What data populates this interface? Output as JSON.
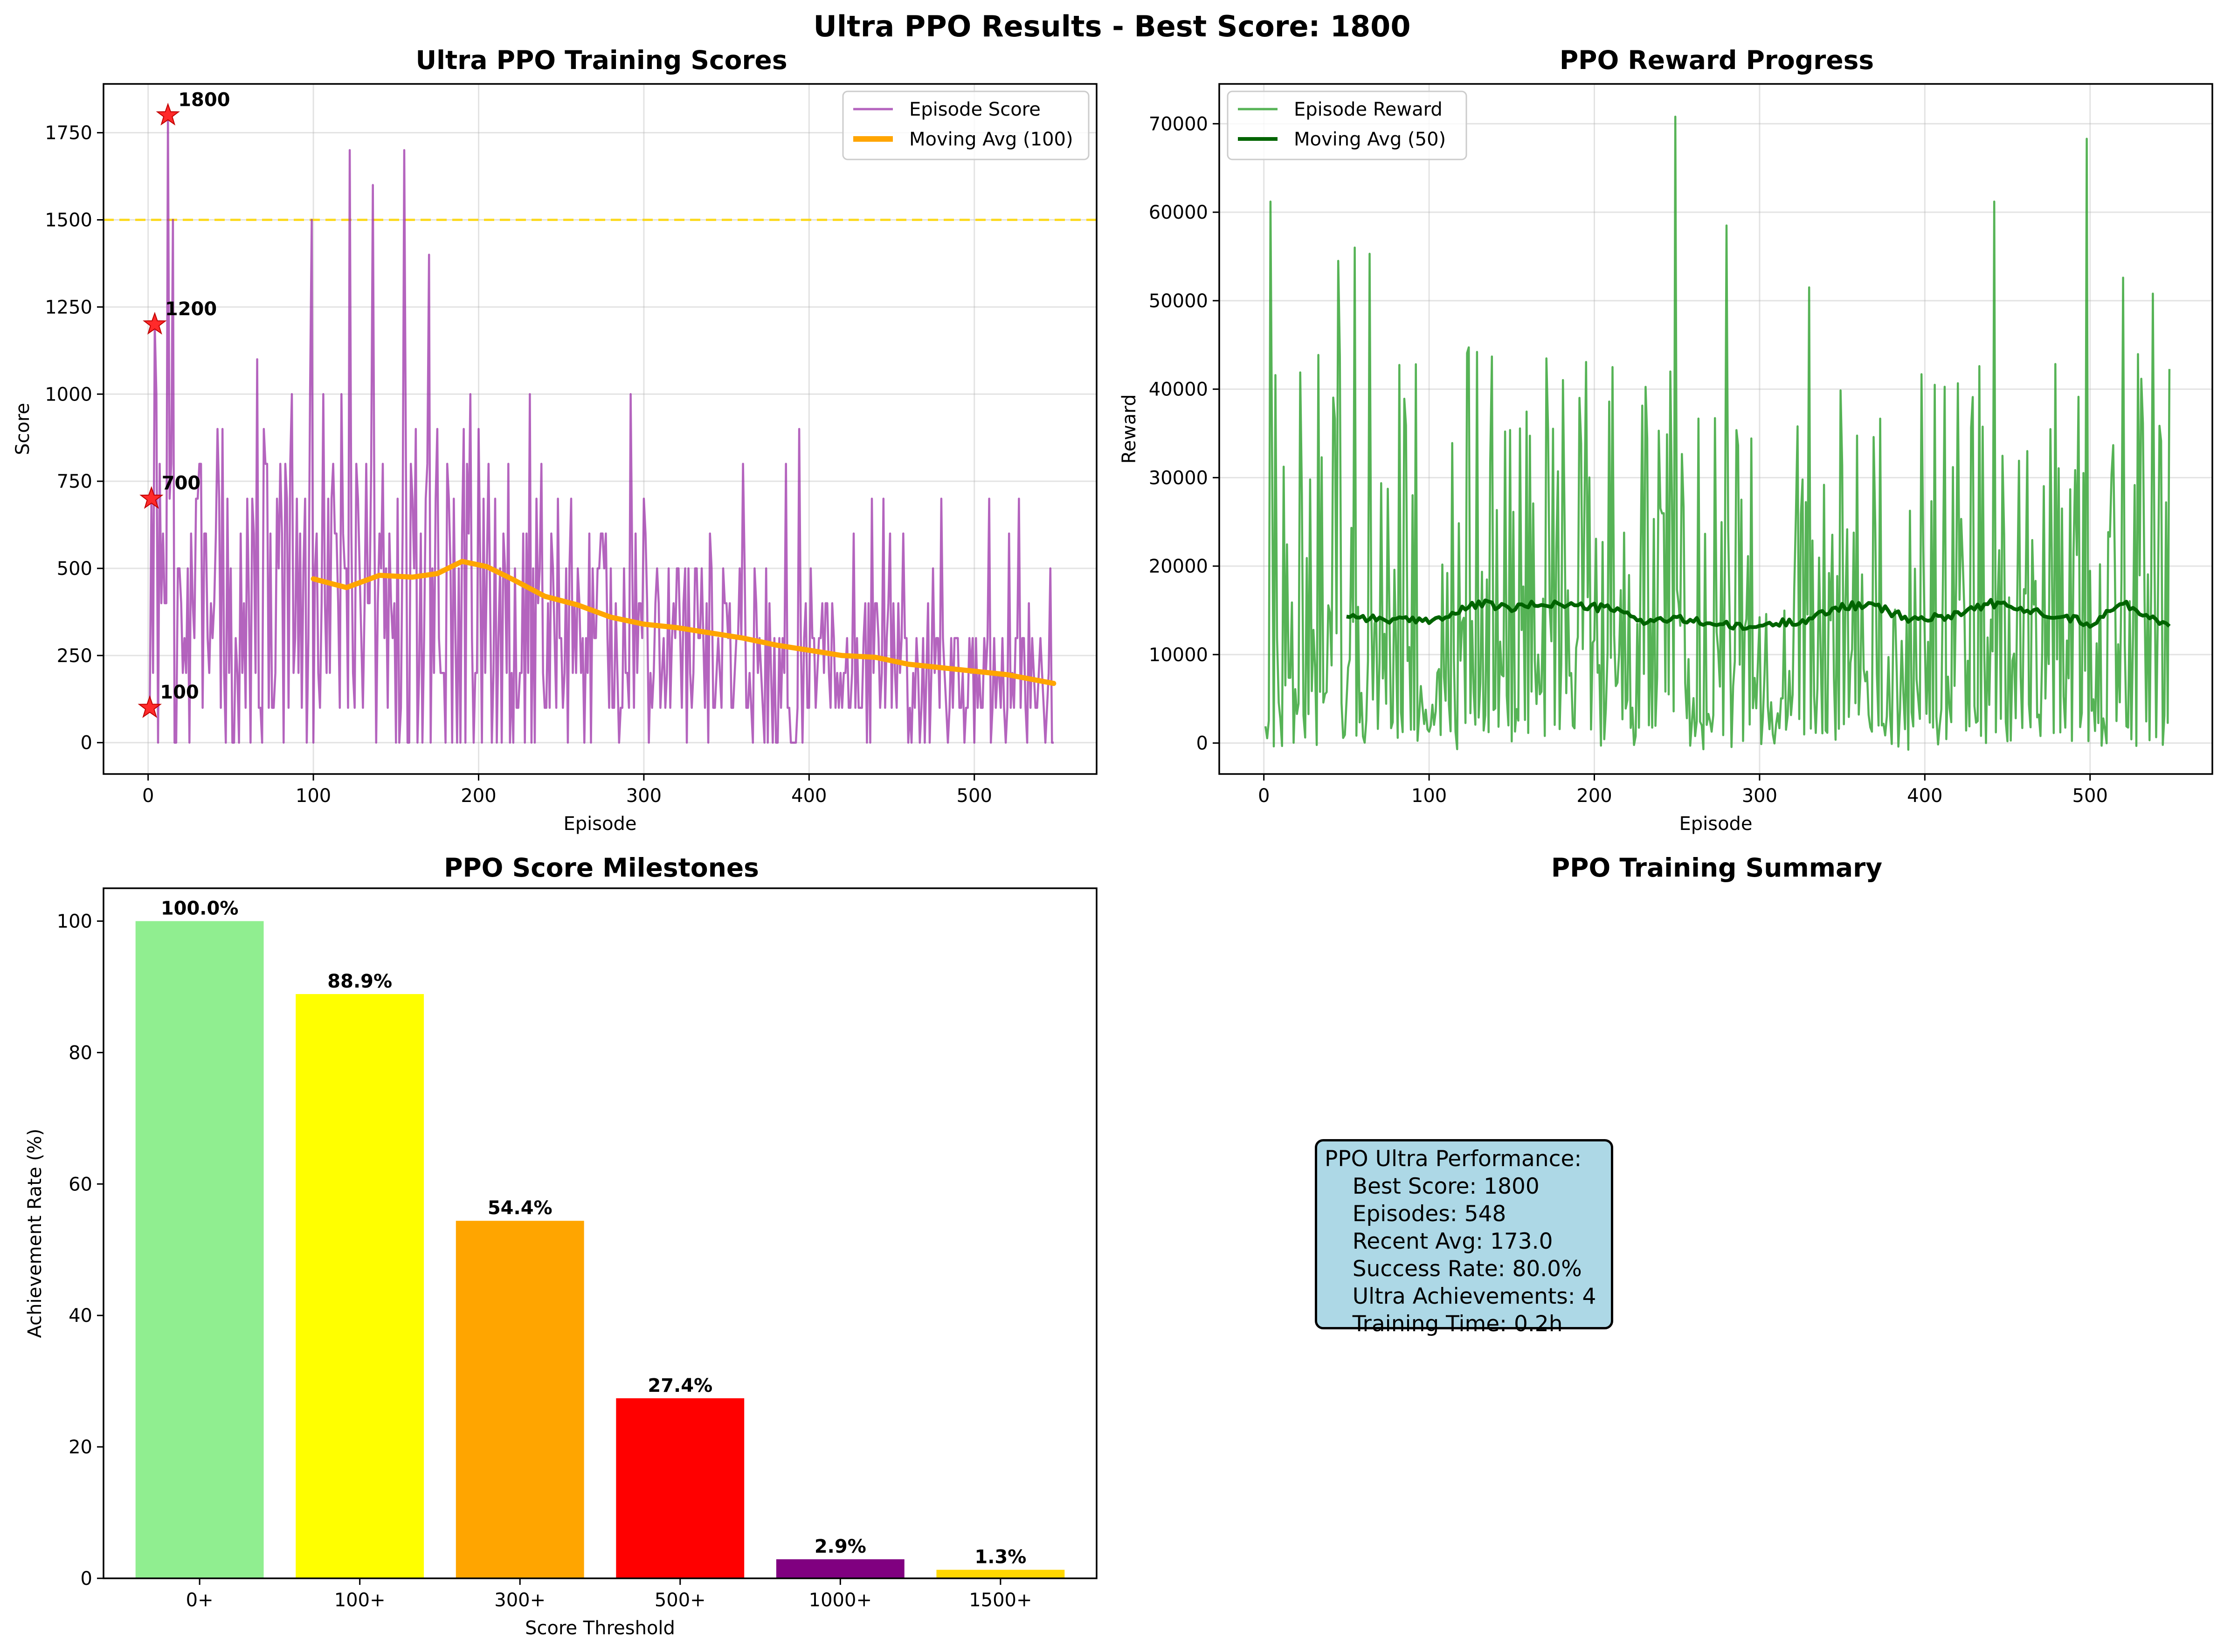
{
  "figure": {
    "suptitle": "Ultra PPO Results - Best Score: 1800"
  },
  "chart_data": [
    {
      "type": "line",
      "title": "Ultra PPO Training Scores",
      "xlabel": "Episode",
      "ylabel": "Score",
      "xlim": [
        -27,
        574
      ],
      "ylim": [
        -90,
        1890
      ],
      "xticks": [
        "0",
        "100",
        "200",
        "300",
        "400",
        "500"
      ],
      "yticks": [
        "0",
        "250",
        "500",
        "750",
        "1000",
        "1250",
        "1500",
        "1750"
      ],
      "grid": true,
      "legend_position": "top-right",
      "reference_line": {
        "y": 1500,
        "color": "#ffd700",
        "style": "dashed"
      },
      "series": [
        {
          "name": "Episode Score",
          "color": "#9b30a8",
          "n": 548,
          "value_range": [
            0,
            1800
          ]
        },
        {
          "name": "Moving Avg (100)",
          "color": "#ffa500",
          "window": 100,
          "points": [
            [
              100,
              470
            ],
            [
              120,
              445
            ],
            [
              140,
              480
            ],
            [
              160,
              475
            ],
            [
              175,
              485
            ],
            [
              190,
              520
            ],
            [
              205,
              505
            ],
            [
              220,
              470
            ],
            [
              240,
              420
            ],
            [
              260,
              395
            ],
            [
              280,
              360
            ],
            [
              300,
              340
            ],
            [
              320,
              330
            ],
            [
              340,
              315
            ],
            [
              360,
              300
            ],
            [
              380,
              280
            ],
            [
              400,
              265
            ],
            [
              420,
              250
            ],
            [
              440,
              245
            ],
            [
              460,
              225
            ],
            [
              480,
              215
            ],
            [
              500,
              205
            ],
            [
              520,
              195
            ],
            [
              548,
              170
            ]
          ]
        }
      ],
      "milestones": [
        {
          "episode": 1,
          "score": 100,
          "label": "100"
        },
        {
          "episode": 2,
          "score": 700,
          "label": "700"
        },
        {
          "episode": 4,
          "score": 1200,
          "label": "1200"
        },
        {
          "episode": 12,
          "score": 1800,
          "label": "1800"
        }
      ]
    },
    {
      "type": "line",
      "title": "PPO Reward Progress",
      "xlabel": "Episode",
      "ylabel": "Reward",
      "xlim": [
        -27,
        574
      ],
      "ylim": [
        -3500,
        74500
      ],
      "xticks": [
        "0",
        "100",
        "200",
        "300",
        "400",
        "500"
      ],
      "yticks": [
        "0",
        "10000",
        "20000",
        "30000",
        "40000",
        "50000",
        "60000",
        "70000"
      ],
      "grid": true,
      "legend_position": "top-left",
      "series": [
        {
          "name": "Episode Reward",
          "color": "#2ca02c",
          "n": 548,
          "value_range": [
            -800,
            70800
          ]
        },
        {
          "name": "Moving Avg (50)",
          "color": "#006400",
          "window": 50,
          "points": [
            [
              50,
              14500
            ],
            [
              70,
              14000
            ],
            [
              90,
              13800
            ],
            [
              110,
              14200
            ],
            [
              130,
              15800
            ],
            [
              150,
              15200
            ],
            [
              170,
              15800
            ],
            [
              190,
              15500
            ],
            [
              210,
              15200
            ],
            [
              230,
              13800
            ],
            [
              250,
              14000
            ],
            [
              270,
              13600
            ],
            [
              290,
              13000
            ],
            [
              310,
              13500
            ],
            [
              330,
              14000
            ],
            [
              350,
              15500
            ],
            [
              370,
              15500
            ],
            [
              390,
              14000
            ],
            [
              410,
              14200
            ],
            [
              440,
              15800
            ],
            [
              460,
              15000
            ],
            [
              480,
              14500
            ],
            [
              500,
              13500
            ],
            [
              520,
              15800
            ],
            [
              548,
              13200
            ]
          ]
        }
      ]
    },
    {
      "type": "bar",
      "title": "PPO Score Milestones",
      "xlabel": "Score Threshold",
      "ylabel": "Achievement Rate (%)",
      "ylim": [
        0,
        105
      ],
      "yticks": [
        "0",
        "20",
        "40",
        "60",
        "80",
        "100"
      ],
      "categories": [
        "0+",
        "100+",
        "300+",
        "500+",
        "1000+",
        "1500+"
      ],
      "values": [
        100.0,
        88.9,
        54.4,
        27.4,
        2.9,
        1.3
      ],
      "value_labels": [
        "100.0%",
        "88.9%",
        "54.4%",
        "27.4%",
        "2.9%",
        "1.3%"
      ],
      "colors": [
        "#90ee90",
        "#ffff00",
        "#ffa500",
        "#ff0000",
        "#800080",
        "#ffd700"
      ]
    }
  ],
  "summary": {
    "title": "PPO Training Summary",
    "lines": [
      "PPO Ultra Performance:",
      "    Best Score: 1800",
      "    Episodes: 548",
      "    Recent Avg: 173.0",
      "    Success Rate: 80.0%",
      "    Ultra Achievements: 4",
      "    Training Time: 0.2h"
    ]
  }
}
